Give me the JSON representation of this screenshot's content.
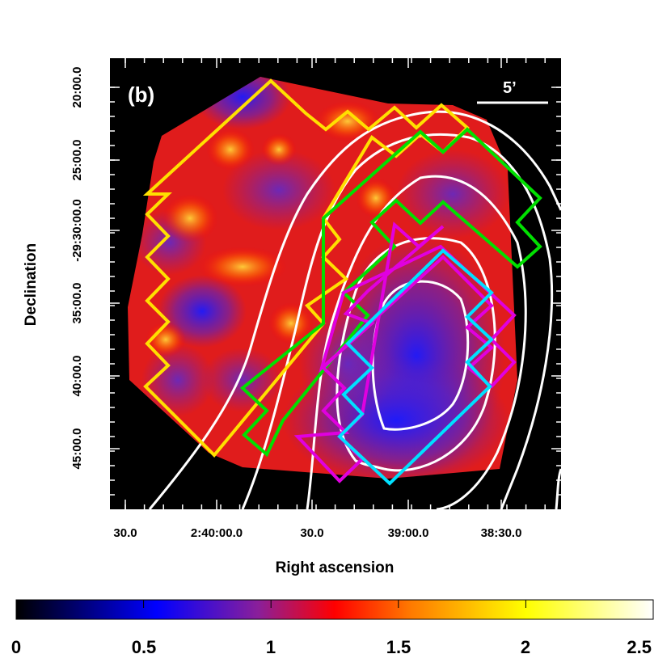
{
  "figure": {
    "panel_label": "(b)",
    "scale_bar_label": "5’",
    "xlabel": "Right ascension",
    "ylabel": "Declination",
    "x_tick_labels": [
      "30.0",
      "2:40:00.0",
      "30.0",
      "39:00.0",
      "38:30.0"
    ],
    "y_tick_labels": [
      "20:00.0",
      "25:00.0",
      "-29:30:00.0",
      "35:00.0",
      "40:00.0",
      "45:00.0"
    ],
    "colorbar": {
      "ticks": [
        "0",
        "0.5",
        "1",
        "1.5",
        "2",
        "2.5"
      ],
      "range": [
        0,
        2.5
      ],
      "stops": [
        {
          "v": 0.0,
          "color": "#000000"
        },
        {
          "v": 0.55,
          "color": "#0000ff"
        },
        {
          "v": 0.95,
          "color": "#8a1f9a"
        },
        {
          "v": 1.25,
          "color": "#ff0000"
        },
        {
          "v": 1.55,
          "color": "#ff7a00"
        },
        {
          "v": 2.0,
          "color": "#ffff00"
        },
        {
          "v": 2.5,
          "color": "#ffffff"
        }
      ]
    },
    "region_colors": {
      "yellow": "#ffe000",
      "green": "#00e000",
      "magenta": "#e000e0",
      "cyan": "#00e0ff",
      "contours": "#ffffff"
    }
  }
}
